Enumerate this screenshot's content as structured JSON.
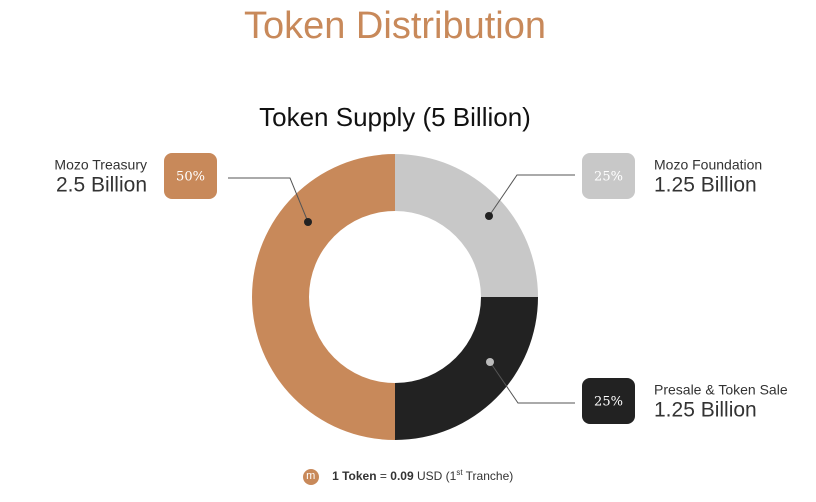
{
  "chart_data": {
    "type": "pie",
    "donut": true,
    "title": "Token Distribution",
    "subtitle": "Token Supply (5 Billion)",
    "categories": [
      "Mozo Foundation",
      "Presale & Token Sale",
      "Mozo Treasury"
    ],
    "values": [
      25,
      25,
      50
    ],
    "value_labels": [
      "25%",
      "25%",
      "50%"
    ],
    "amount_labels": [
      "1.25 Billion",
      "1.25 Billion",
      "2.5 Billion"
    ],
    "colors": [
      "#c8c8c8",
      "#222222",
      "#c8895a"
    ],
    "footer": {
      "icon": "m",
      "parts": [
        "1 Token",
        "=",
        "0.09",
        "USD (1",
        "st",
        "Tranche)"
      ]
    }
  }
}
